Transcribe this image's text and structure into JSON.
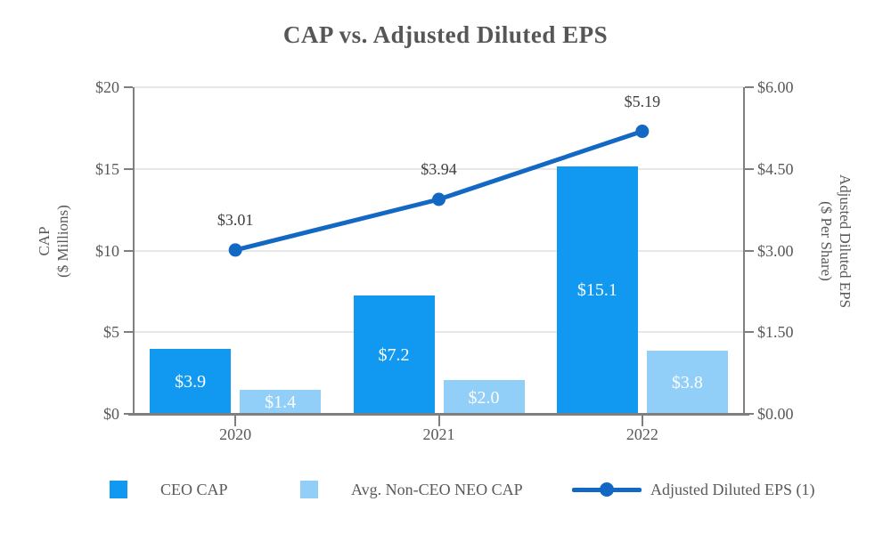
{
  "chart_data": {
    "type": "bar+line",
    "title": "CAP vs. Adjusted Diluted EPS",
    "categories": [
      "2020",
      "2021",
      "2022"
    ],
    "series": [
      {
        "name": "CEO CAP",
        "type": "bar",
        "axis": "left",
        "color": "#1199F2",
        "values": [
          3.9,
          7.2,
          15.1
        ],
        "value_labels": [
          "$3.9",
          "$7.2",
          "$15.1"
        ]
      },
      {
        "name": "Avg. Non-CEO NEO CAP",
        "type": "bar",
        "axis": "left",
        "color": "#92CFF8",
        "values": [
          1.4,
          2.0,
          3.8
        ],
        "value_labels": [
          "$1.4",
          "$2.0",
          "$3.8"
        ]
      },
      {
        "name": "Adjusted Diluted EPS (1)",
        "type": "line",
        "axis": "right",
        "color": "#1268C3",
        "values": [
          3.01,
          3.94,
          5.19
        ],
        "value_labels": [
          "$3.01",
          "$3.94",
          "$5.19"
        ]
      }
    ],
    "axes": {
      "left": {
        "title_line1": "CAP",
        "title_line2": "($ Millions)",
        "min": 0,
        "max": 20,
        "ticks": [
          0,
          5,
          10,
          15,
          20
        ],
        "tick_labels": [
          "$0",
          "$5",
          "$10",
          "$15",
          "$20"
        ]
      },
      "right": {
        "title_line1": "Adjusted Diluted EPS",
        "title_line2": "($ Per Share)",
        "min": 0,
        "max": 6,
        "ticks": [
          0,
          1.5,
          3,
          4.5,
          6
        ],
        "tick_labels": [
          "$0.00",
          "$1.50",
          "$3.00",
          "$4.50",
          "$6.00"
        ]
      }
    },
    "grid": true,
    "legend_position": "bottom"
  }
}
